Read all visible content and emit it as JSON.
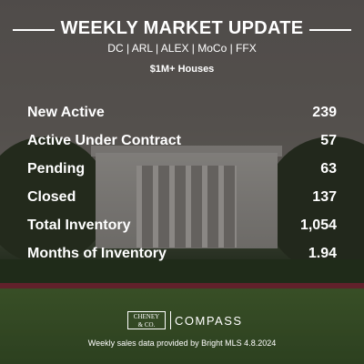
{
  "header": {
    "title": "WEEKLY MARKET UPDATE",
    "subtitle": "DC | ARL | ALEX | MoCo | FFX",
    "segment": "$1M+ Houses"
  },
  "stats": [
    {
      "label": "New Active",
      "value": "239"
    },
    {
      "label": "Active Under Contract",
      "value": "57"
    },
    {
      "label": "Pending",
      "value": "63"
    },
    {
      "label": "Closed",
      "value": "137"
    },
    {
      "label": "Total Inventory",
      "value": "1,054"
    },
    {
      "label": "Months of Inventory",
      "value": "1.94"
    }
  ],
  "footer": {
    "logo": [
      "CHENEY",
      "& CO."
    ],
    "brand": "COMPASS",
    "note": "Weekly sales data provided by Bright MLS 4.8.2024"
  }
}
